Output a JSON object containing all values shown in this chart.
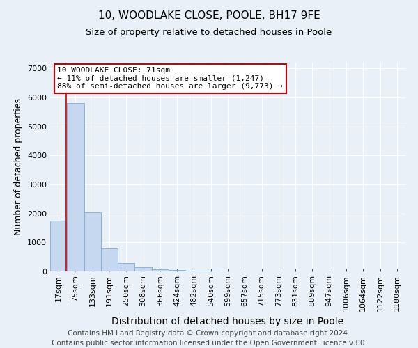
{
  "title1": "10, WOODLAKE CLOSE, POOLE, BH17 9FE",
  "title2": "Size of property relative to detached houses in Poole",
  "xlabel": "Distribution of detached houses by size in Poole",
  "ylabel": "Number of detached properties",
  "footer": "Contains HM Land Registry data © Crown copyright and database right 2024.\nContains public sector information licensed under the Open Government Licence v3.0.",
  "bin_labels": [
    "17sqm",
    "75sqm",
    "133sqm",
    "191sqm",
    "250sqm",
    "308sqm",
    "366sqm",
    "424sqm",
    "482sqm",
    "540sqm",
    "599sqm",
    "657sqm",
    "715sqm",
    "773sqm",
    "831sqm",
    "889sqm",
    "947sqm",
    "1006sqm",
    "1064sqm",
    "1122sqm",
    "1180sqm"
  ],
  "bar_values": [
    1750,
    5800,
    2050,
    800,
    300,
    150,
    80,
    50,
    30,
    15,
    10,
    5,
    0,
    0,
    0,
    0,
    0,
    0,
    0,
    0,
    0
  ],
  "bar_color": "#c5d8f0",
  "bar_edge_color": "#7dadd4",
  "highlight_line_color": "#cc0000",
  "annotation_text": "10 WOODLAKE CLOSE: 71sqm\n← 11% of detached houses are smaller (1,247)\n88% of semi-detached houses are larger (9,773) →",
  "annotation_box_color": "#ffffff",
  "annotation_box_edge_color": "#cc0000",
  "ylim": [
    0,
    7200
  ],
  "yticks": [
    0,
    1000,
    2000,
    3000,
    4000,
    5000,
    6000,
    7000
  ],
  "background_color": "#eaf0f8",
  "plot_background_color": "#eaf0f8",
  "grid_color": "#ffffff",
  "title1_fontsize": 11,
  "title2_fontsize": 9.5,
  "xlabel_fontsize": 10,
  "ylabel_fontsize": 9,
  "tick_fontsize": 8,
  "footer_fontsize": 7.5,
  "annotation_fontsize": 8
}
